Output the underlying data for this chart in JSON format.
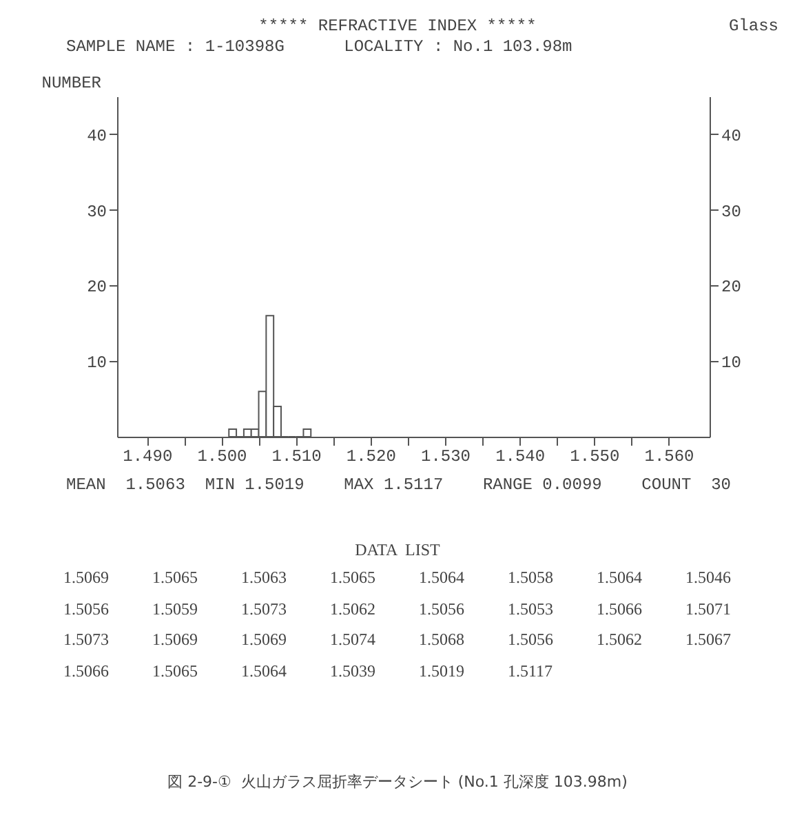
{
  "chart_data": {
    "type": "histogram",
    "title": "***** REFRACTIVE INDEX *****",
    "subtitle": "SAMPLE NAME : 1-10398G      LOCALITY : No.1 103.98m",
    "ylabel": "NUMBER",
    "bins": [
      1.501,
      1.502,
      1.503,
      1.504,
      1.505,
      1.506,
      1.507,
      1.508,
      1.509,
      1.51,
      1.511,
      1.512
    ],
    "values": [
      1,
      0,
      1,
      1,
      6,
      16,
      4,
      0,
      0,
      0,
      1
    ],
    "color": "#555555",
    "xlim": [
      1.486,
      1.5655
    ],
    "xticks": [
      {
        "value": 1.49,
        "label": "1.490"
      },
      {
        "value": 1.495,
        "label": null
      },
      {
        "value": 1.5,
        "label": "1.500"
      },
      {
        "value": 1.505,
        "label": null
      },
      {
        "value": 1.51,
        "label": "1.510"
      },
      {
        "value": 1.515,
        "label": null
      },
      {
        "value": 1.52,
        "label": "1.520"
      },
      {
        "value": 1.525,
        "label": null
      },
      {
        "value": 1.53,
        "label": "1.530"
      },
      {
        "value": 1.535,
        "label": null
      },
      {
        "value": 1.54,
        "label": "1.540"
      },
      {
        "value": 1.545,
        "label": null
      },
      {
        "value": 1.55,
        "label": "1.550"
      },
      {
        "value": 1.555,
        "label": null
      },
      {
        "value": 1.56,
        "label": "1.560"
      }
    ],
    "ylim": [
      0,
      45
    ],
    "yticks": [
      10,
      20,
      30,
      40
    ],
    "y2lim": [
      0,
      45
    ],
    "y2ticks": [
      10,
      20,
      30,
      40
    ],
    "annotations": [
      "Glass",
      "MEAN  1.5063  MIN 1.5019    MAX 1.5117    RANGE 0.0099    COUNT  30",
      "DATA  LIST",
      "1.5069",
      "1.5065",
      "1.5063",
      "1.5065",
      "1.5064",
      "1.5058",
      "1.5064",
      "1.5046",
      "1.5056",
      "1.5059",
      "1.5073",
      "1.5062",
      "1.5056",
      "1.5053",
      "1.5066",
      "1.5071",
      "1.5073",
      "1.5069",
      "1.5069",
      "1.5074",
      "1.5068",
      "1.5056",
      "1.5062",
      "1.5067",
      "1.5066",
      "1.5065",
      "1.5064",
      "1.5039",
      "1.5019",
      "1.5117",
      "図 2-9-①  火山ガラス屈折率データシート (No.1 孔深度 103.98m)"
    ]
  }
}
